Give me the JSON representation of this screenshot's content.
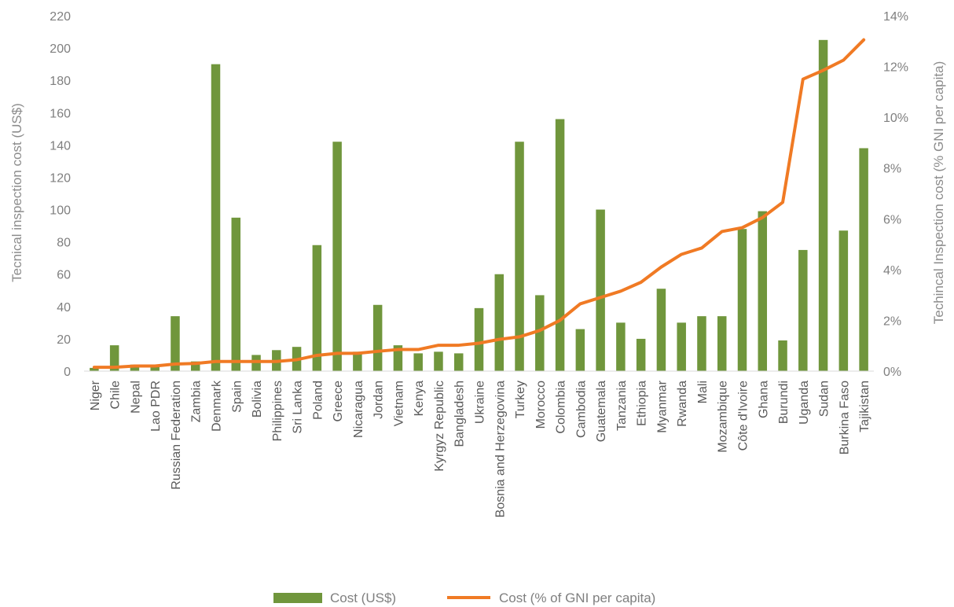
{
  "chart_data": {
    "type": "bar",
    "categories": [
      "Niger",
      "Chile",
      "Nepal",
      "Lao PDR",
      "Russian Federation",
      "Zambia",
      "Denmark",
      "Spain",
      "Bolivia",
      "Philippines",
      "Sri Lanka",
      "Poland",
      "Greece",
      "Nicaragua",
      "Jordan",
      "Vietnam",
      "Kenya",
      "Kyrgyz Republic",
      "Bangladesh",
      "Ukraine",
      "Bosnia and Herzegovina",
      "Turkey",
      "Morocco",
      "Colombia",
      "Cambodia",
      "Guatemala",
      "Tanzania",
      "Ethiopia",
      "Myanmar",
      "Rwanda",
      "Mali",
      "Mozambique",
      "Côte d'Ivoire",
      "Ghana",
      "Burundi",
      "Uganda",
      "Sudan",
      "Burkina Faso",
      "Tajikistan"
    ],
    "series": [
      {
        "name": "Cost (US$)",
        "type": "bar",
        "axis": "left",
        "color": "#70963c",
        "values": [
          2,
          16,
          4,
          4,
          34,
          6,
          190,
          95,
          10,
          13,
          15,
          78,
          142,
          12,
          41,
          16,
          11,
          12,
          11,
          39,
          60,
          142,
          47,
          156,
          26,
          100,
          30,
          20,
          51,
          30,
          34,
          34,
          88,
          99,
          19,
          75,
          205,
          87,
          138
        ]
      },
      {
        "name": "Cost (% of GNI per capita)",
        "type": "line",
        "axis": "right",
        "color": "#f07a24",
        "values": [
          0.15,
          0.15,
          0.2,
          0.2,
          0.28,
          0.3,
          0.38,
          0.38,
          0.38,
          0.38,
          0.45,
          0.62,
          0.7,
          0.7,
          0.78,
          0.85,
          0.85,
          1.02,
          1.02,
          1.1,
          1.25,
          1.35,
          1.6,
          2.0,
          2.65,
          2.9,
          3.15,
          3.5,
          4.1,
          4.6,
          4.85,
          5.5,
          5.65,
          6.05,
          6.65,
          11.5,
          11.85,
          12.25,
          13.05
        ]
      }
    ],
    "y_left": {
      "label": "Tecnical inspection cost (US$)",
      "min": 0,
      "max": 220,
      "ticks": [
        0,
        20,
        40,
        60,
        80,
        100,
        120,
        140,
        160,
        180,
        200,
        220
      ],
      "tick_labels": [
        "0",
        "20",
        "40",
        "60",
        "80",
        "100",
        "120",
        "140",
        "160",
        "180",
        "200",
        "220"
      ]
    },
    "y_right": {
      "label": "Techincal Inspection cost (% GNI per capita)",
      "min": 0,
      "max": 14,
      "ticks": [
        0,
        2,
        4,
        6,
        8,
        10,
        12,
        14
      ],
      "tick_labels": [
        "0%",
        "2%",
        "4%",
        "6%",
        "8%",
        "10%",
        "12%",
        "14%"
      ]
    },
    "grid": false,
    "legend": {
      "position": "bottom",
      "entries": [
        "Cost (US$)",
        "Cost (% of GNI per capita)"
      ]
    }
  }
}
